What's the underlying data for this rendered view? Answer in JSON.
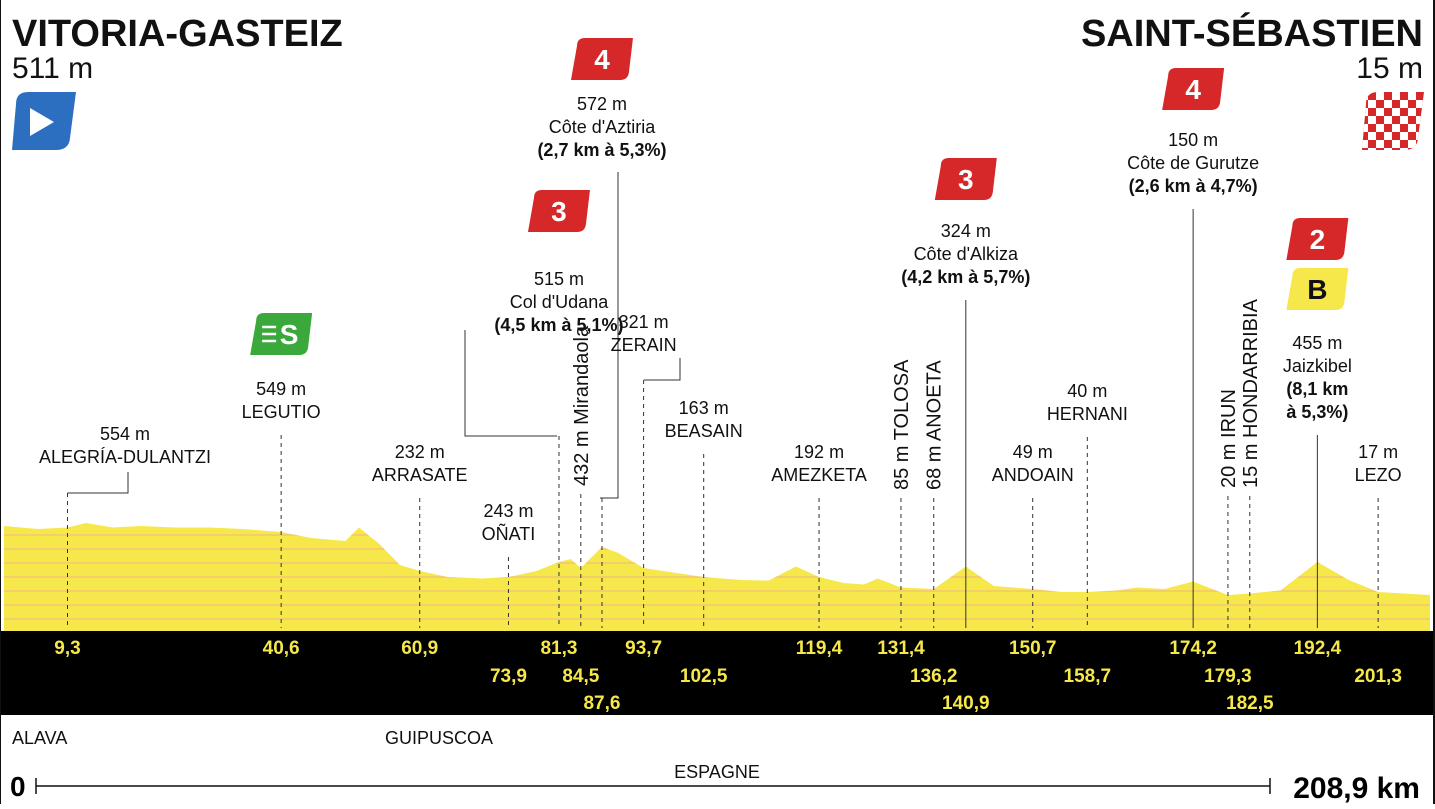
{
  "start": {
    "city": "VITORIA-GASTEIZ",
    "altitude": "511 m"
  },
  "finish": {
    "city": "SAINT-SÉBASTIEN",
    "altitude": "15 m"
  },
  "regions": {
    "left": "ALAVA",
    "middle": "GUIPUSCOA",
    "country": "ESPAGNE"
  },
  "distance": {
    "start_label": "0",
    "end_label": "208,9 km"
  },
  "colors": {
    "profile": "#f6e84a",
    "band": "#000000",
    "kom_red": "#d62828",
    "sprint_green": "#3aa83a",
    "bonus_yellow": "#f6e84a",
    "start_blue": "#2c6fc1"
  },
  "chart_data": {
    "type": "area",
    "x_range_km": [
      0,
      208.9
    ],
    "profile": [
      [
        0,
        350
      ],
      [
        5,
        340
      ],
      [
        9.3,
        345
      ],
      [
        12,
        360
      ],
      [
        16,
        345
      ],
      [
        20,
        350
      ],
      [
        25,
        345
      ],
      [
        30,
        345
      ],
      [
        35,
        340
      ],
      [
        40.6,
        330
      ],
      [
        45,
        310
      ],
      [
        50,
        300
      ],
      [
        52,
        345
      ],
      [
        55,
        290
      ],
      [
        58,
        220
      ],
      [
        60.9,
        200
      ],
      [
        65,
        180
      ],
      [
        70,
        175
      ],
      [
        73.9,
        180
      ],
      [
        78,
        200
      ],
      [
        81.3,
        230
      ],
      [
        83,
        240
      ],
      [
        84.5,
        210
      ],
      [
        87.6,
        280
      ],
      [
        90,
        260
      ],
      [
        93.7,
        210
      ],
      [
        98,
        195
      ],
      [
        102.5,
        180
      ],
      [
        108,
        170
      ],
      [
        112,
        168
      ],
      [
        116,
        215
      ],
      [
        119.4,
        180
      ],
      [
        123,
        160
      ],
      [
        126,
        155
      ],
      [
        128,
        175
      ],
      [
        131.4,
        145
      ],
      [
        136.2,
        140
      ],
      [
        140.9,
        215
      ],
      [
        145,
        150
      ],
      [
        150.7,
        140
      ],
      [
        155,
        130
      ],
      [
        158.7,
        130
      ],
      [
        163,
        135
      ],
      [
        166,
        145
      ],
      [
        170,
        140
      ],
      [
        174.2,
        165
      ],
      [
        179.3,
        120
      ],
      [
        182.5,
        125
      ],
      [
        187,
        135
      ],
      [
        192.4,
        230
      ],
      [
        197,
        170
      ],
      [
        201.3,
        130
      ],
      [
        205,
        125
      ],
      [
        208.9,
        120
      ]
    ],
    "distance_labels": [
      {
        "km": 9.3,
        "label": "9,3",
        "row": 0
      },
      {
        "km": 40.6,
        "label": "40,6",
        "row": 0
      },
      {
        "km": 60.9,
        "label": "60,9",
        "row": 0
      },
      {
        "km": 73.9,
        "label": "73,9",
        "row": 1
      },
      {
        "km": 81.3,
        "label": "81,3",
        "row": 0
      },
      {
        "km": 84.5,
        "label": "84,5",
        "row": 1
      },
      {
        "km": 87.6,
        "label": "87,6",
        "row": 2
      },
      {
        "km": 93.7,
        "label": "93,7",
        "row": 0
      },
      {
        "km": 102.5,
        "label": "102,5",
        "row": 1
      },
      {
        "km": 119.4,
        "label": "119,4",
        "row": 0
      },
      {
        "km": 131.4,
        "label": "131,4",
        "row": 0
      },
      {
        "km": 136.2,
        "label": "136,2",
        "row": 1
      },
      {
        "km": 140.9,
        "label": "140,9",
        "row": 2
      },
      {
        "km": 150.7,
        "label": "150,7",
        "row": 0
      },
      {
        "km": 158.7,
        "label": "158,7",
        "row": 1
      },
      {
        "km": 174.2,
        "label": "174,2",
        "row": 0
      },
      {
        "km": 179.3,
        "label": "179,3",
        "row": 1
      },
      {
        "km": 182.5,
        "label": "182,5",
        "row": 2
      },
      {
        "km": 192.4,
        "label": "192,4",
        "row": 0
      },
      {
        "km": 201.3,
        "label": "201,3",
        "row": 1
      }
    ],
    "waypoints": [
      {
        "km": 9.3,
        "alt": "554 m",
        "name": "ALEGRÍA-DULANTZI"
      },
      {
        "km": 40.6,
        "alt": "549 m",
        "name": "LEGUTIO",
        "badge": "sprint"
      },
      {
        "km": 60.9,
        "alt": "232 m",
        "name": "ARRASATE"
      },
      {
        "km": 73.9,
        "alt": "243 m",
        "name": "OÑATI"
      },
      {
        "km": 81.3,
        "alt": "515 m",
        "name": "Col d'Udana",
        "detail": "(4,5 km à 5,1%)",
        "badge": "3"
      },
      {
        "km": 84.5,
        "vertical": "432 m Mirandaola"
      },
      {
        "km": 87.6,
        "alt": "572 m",
        "name": "Côte d'Aztiria",
        "detail": "(2,7 km à 5,3%)",
        "badge": "4"
      },
      {
        "km": 93.7,
        "alt": "321 m",
        "name": "ZERAIN"
      },
      {
        "km": 102.5,
        "alt": "163 m",
        "name": "BEASAIN"
      },
      {
        "km": 119.4,
        "alt": "192 m",
        "name": "AMEZKETA"
      },
      {
        "km": 131.4,
        "vertical": "85 m TOLOSA"
      },
      {
        "km": 136.2,
        "vertical": "68 m ANOETA"
      },
      {
        "km": 140.9,
        "alt": "324 m",
        "name": "Côte d'Alkiza",
        "detail": "(4,2 km à 5,7%)",
        "badge": "3"
      },
      {
        "km": 150.7,
        "alt": "49 m",
        "name": "ANDOAIN"
      },
      {
        "km": 158.7,
        "alt": "40 m",
        "name": "HERNANI"
      },
      {
        "km": 174.2,
        "alt": "150 m",
        "name": "Côte de Gurutze",
        "detail": "(2,6 km à 4,7%)",
        "badge": "4"
      },
      {
        "km": 179.3,
        "vertical": "20 m IRUN"
      },
      {
        "km": 182.5,
        "vertical": "15 m HONDARRIBIA"
      },
      {
        "km": 192.4,
        "alt": "455 m",
        "name": "Jaizkibel",
        "detail": "(8,1 km",
        "detail2": "à 5,3%)",
        "badge": "2",
        "bonus": "B"
      },
      {
        "km": 201.3,
        "alt": "17 m",
        "name": "LEZO"
      }
    ]
  }
}
